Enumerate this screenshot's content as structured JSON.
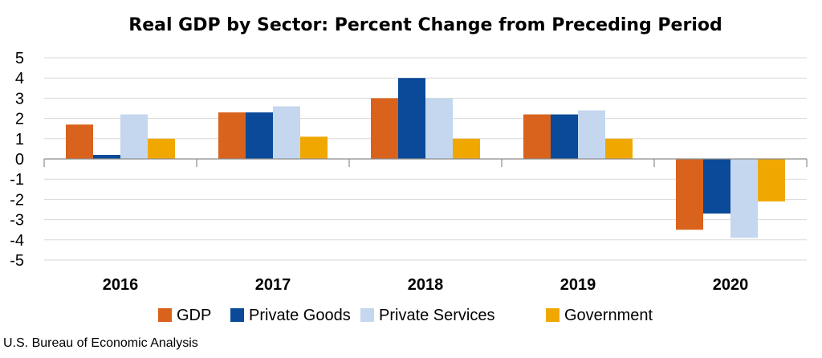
{
  "chart_data": {
    "type": "bar",
    "title": "Real GDP by Sector:  Percent Change from Preceding Period",
    "xlabel": "",
    "ylabel": "",
    "ylim": [
      -5,
      5
    ],
    "yticks": [
      "5",
      "4",
      "3",
      "2",
      "1",
      "0",
      "-1",
      "-2",
      "-3",
      "-4",
      "-5"
    ],
    "ytick_values": [
      5,
      4,
      3,
      2,
      1,
      0,
      -1,
      -2,
      -3,
      -4,
      -5
    ],
    "grid": true,
    "legend_position": "bottom",
    "categories": [
      "2016",
      "2017",
      "2018",
      "2019",
      "2020"
    ],
    "series": [
      {
        "name": "GDP",
        "color": "#d9621c",
        "values": [
          1.7,
          2.3,
          3.0,
          2.2,
          -3.5
        ]
      },
      {
        "name": "Private Goods",
        "color": "#0a4a98",
        "values": [
          0.2,
          2.3,
          4.0,
          2.2,
          -2.7
        ]
      },
      {
        "name": "Private Services",
        "color": "#c4d7ef",
        "values": [
          2.2,
          2.6,
          3.0,
          2.4,
          -3.9
        ]
      },
      {
        "name": "Government",
        "color": "#f0a800",
        "values": [
          1.0,
          1.1,
          1.0,
          1.0,
          -2.1
        ]
      }
    ]
  },
  "source": "U.S. Bureau of Economic Analysis"
}
